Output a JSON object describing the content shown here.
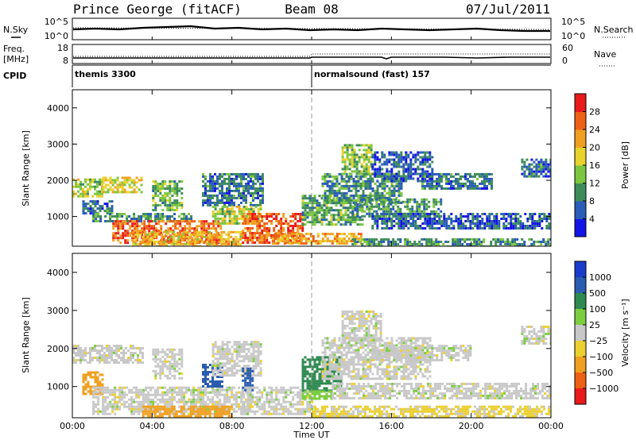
{
  "header": {
    "station": "Prince George (fitACF)",
    "beam": "Beam 08",
    "date": "07/Jul/2011"
  },
  "strips": {
    "nsky_label": "N.Sky",
    "nsearch_label": "N.Search",
    "nsky_ticks": [
      "10^5",
      "10^0"
    ],
    "nsky_right_ticks": [
      "10^5",
      "10^0"
    ],
    "freq_label_top": "Freq.",
    "freq_label_unit": "[MHz]",
    "freq_ticks": [
      "18",
      "8"
    ],
    "nave_label": "Nave",
    "nave_ticks": [
      "60",
      "0"
    ],
    "cpid_label": "CPID",
    "cpid_segments": [
      {
        "label": "themis 3300",
        "start_hour": 0
      },
      {
        "label": "normalsound (fast) 157",
        "start_hour": 12
      }
    ]
  },
  "axes": {
    "ylabel": "Slant Range [km]",
    "xlabel": "Time UT",
    "y_ticks": [
      "1000",
      "2000",
      "3000",
      "4000"
    ],
    "x_ticks": [
      "00:00",
      "04:00",
      "08:00",
      "12:00",
      "16:00",
      "20:00",
      "00:00"
    ]
  },
  "chart_data": [
    {
      "type": "heatmap",
      "name": "power",
      "xlim": [
        0,
        24
      ],
      "ylim": [
        180,
        4500
      ],
      "x_unit": "hour UT",
      "y_unit": "km",
      "grid": false,
      "colorbar": {
        "label": "Power [dB]",
        "ticks": [
          "4",
          "8",
          "12",
          "16",
          "20",
          "24",
          "28"
        ],
        "colors": [
          "#1414e6",
          "#2a5cb8",
          "#3d8c5a",
          "#7cc640",
          "#e8d22c",
          "#f0a020",
          "#ee6014",
          "#e81a1a"
        ]
      },
      "regions": [
        {
          "x": [
            0.0,
            1.5
          ],
          "y": [
            1550,
            2050
          ],
          "value": 16
        },
        {
          "x": [
            1.5,
            3.5
          ],
          "y": [
            1700,
            2100
          ],
          "value": 18
        },
        {
          "x": [
            0.5,
            2.0
          ],
          "y": [
            1100,
            1450
          ],
          "value": 8
        },
        {
          "x": [
            1.0,
            6.0
          ],
          "y": [
            900,
            1100
          ],
          "value": 10
        },
        {
          "x": [
            2.0,
            7.5
          ],
          "y": [
            300,
            900
          ],
          "value": 26
        },
        {
          "x": [
            3.0,
            8.5
          ],
          "y": [
            200,
            600
          ],
          "value": 20
        },
        {
          "x": [
            4.0,
            5.5
          ],
          "y": [
            1200,
            2000
          ],
          "value": 12
        },
        {
          "x": [
            6.5,
            9.5
          ],
          "y": [
            1300,
            2200
          ],
          "value": 8
        },
        {
          "x": [
            7.0,
            9.5
          ],
          "y": [
            800,
            1300
          ],
          "value": 16
        },
        {
          "x": [
            8.5,
            11.5
          ],
          "y": [
            300,
            1100
          ],
          "value": 26
        },
        {
          "x": [
            10.0,
            14.5
          ],
          "y": [
            250,
            550
          ],
          "value": 22
        },
        {
          "x": [
            11.5,
            14.5
          ],
          "y": [
            800,
            1600
          ],
          "value": 12
        },
        {
          "x": [
            12.5,
            16.5
          ],
          "y": [
            1400,
            2200
          ],
          "value": 10
        },
        {
          "x": [
            13.5,
            15.0
          ],
          "y": [
            2200,
            3000
          ],
          "value": 14
        },
        {
          "x": [
            14.0,
            18.5
          ],
          "y": [
            1000,
            1500
          ],
          "value": 10
        },
        {
          "x": [
            15.0,
            24.0
          ],
          "y": [
            700,
            1100
          ],
          "value": 6
        },
        {
          "x": [
            15.0,
            18.0
          ],
          "y": [
            2000,
            2800
          ],
          "value": 6
        },
        {
          "x": [
            17.5,
            21.0
          ],
          "y": [
            1800,
            2200
          ],
          "value": 8
        },
        {
          "x": [
            14.0,
            24.0
          ],
          "y": [
            180,
            400
          ],
          "value": 10
        },
        {
          "x": [
            22.5,
            24.0
          ],
          "y": [
            2100,
            2600
          ],
          "value": 8
        }
      ]
    },
    {
      "type": "heatmap",
      "name": "velocity",
      "xlim": [
        0,
        24
      ],
      "ylim": [
        180,
        4500
      ],
      "x_unit": "hour UT",
      "y_unit": "km",
      "grid": false,
      "colorbar": {
        "label": "Velocity  [m s⁻¹]",
        "ticks": [
          "1000",
          "500",
          "100",
          "25",
          "−25",
          "−100",
          "−500",
          "−1000"
        ],
        "colors": [
          "#1a3ccc",
          "#2a5cb0",
          "#2e8a50",
          "#7cce40",
          "#c8c8c8",
          "#ecd030",
          "#f0a020",
          "#ee6014",
          "#e81a1a"
        ]
      },
      "regions": [
        {
          "x": [
            0.0,
            3.5
          ],
          "y": [
            1600,
            2100
          ],
          "value": 0
        },
        {
          "x": [
            0.5,
            1.5
          ],
          "y": [
            800,
            1400
          ],
          "value": -200
        },
        {
          "x": [
            1.0,
            9.0
          ],
          "y": [
            300,
            1000
          ],
          "value": 0
        },
        {
          "x": [
            3.5,
            8.0
          ],
          "y": [
            200,
            500
          ],
          "value": -300
        },
        {
          "x": [
            4.0,
            5.5
          ],
          "y": [
            1200,
            2000
          ],
          "value": 0
        },
        {
          "x": [
            6.5,
            7.5
          ],
          "y": [
            1000,
            1600
          ],
          "value": 600
        },
        {
          "x": [
            7.0,
            9.5
          ],
          "y": [
            1300,
            2200
          ],
          "value": 0
        },
        {
          "x": [
            8.5,
            9.0
          ],
          "y": [
            900,
            1500
          ],
          "value": 600
        },
        {
          "x": [
            8.5,
            12.0
          ],
          "y": [
            300,
            1000
          ],
          "value": 0
        },
        {
          "x": [
            11.5,
            13.5
          ],
          "y": [
            900,
            1800
          ],
          "value": 300
        },
        {
          "x": [
            11.5,
            13.0
          ],
          "y": [
            700,
            900
          ],
          "value": 60
        },
        {
          "x": [
            12.5,
            18.0
          ],
          "y": [
            1200,
            2300
          ],
          "value": 0
        },
        {
          "x": [
            13.5,
            15.5
          ],
          "y": [
            2200,
            3000
          ],
          "value": 0
        },
        {
          "x": [
            13.0,
            24.0
          ],
          "y": [
            700,
            1100
          ],
          "value": 0
        },
        {
          "x": [
            15.0,
            20.0
          ],
          "y": [
            1700,
            2100
          ],
          "value": 0
        },
        {
          "x": [
            12.0,
            24.0
          ],
          "y": [
            200,
            500
          ],
          "value": -40
        },
        {
          "x": [
            22.5,
            24.0
          ],
          "y": [
            2100,
            2600
          ],
          "value": 0
        }
      ]
    }
  ]
}
